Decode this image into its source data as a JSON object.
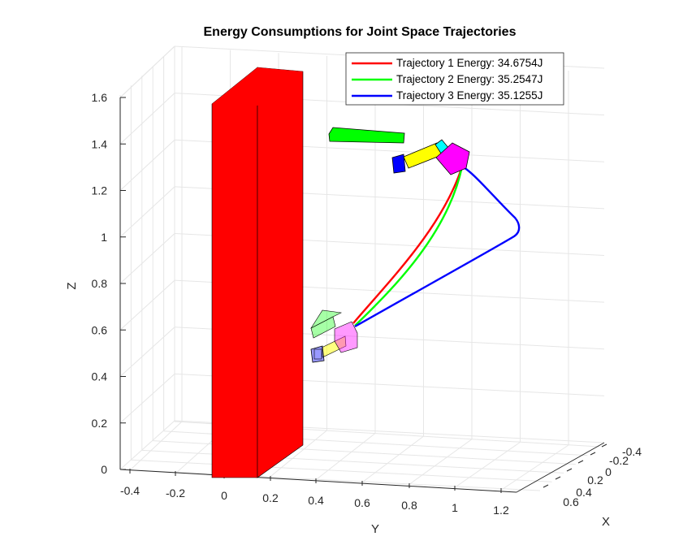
{
  "chart_data": {
    "type": "line",
    "title": "Energy Consumptions for Joint Space Trajectories",
    "xlabel": "X",
    "ylabel": "Y",
    "zlabel": "Z",
    "y_ticks": [
      "-0.4",
      "-0.2",
      "0",
      "0.2",
      "0.4",
      "0.6",
      "0.8",
      "1",
      "1.2"
    ],
    "x_ticks": [
      "-0.4",
      "-0.2",
      "0",
      "0.2",
      "0.4",
      "0.6"
    ],
    "z_ticks": [
      "0",
      "0.2",
      "0.4",
      "0.6",
      "0.8",
      "1",
      "1.2",
      "1.4",
      "1.6"
    ],
    "grid": true,
    "legend_position": "top-right",
    "series": [
      {
        "name": "Trajectory 1 Energy: 34.6754J",
        "color": "#ff0000"
      },
      {
        "name": "Trajectory 2 Energy: 35.2547J",
        "color": "#00ff00"
      },
      {
        "name": "Trajectory 3 Energy: 35.1255J",
        "color": "#0000ff"
      }
    ],
    "objects": [
      {
        "name": "obstacle",
        "color": "#ff0000"
      },
      {
        "name": "robot-start-pose",
        "colors": [
          "#00ff00",
          "#ffff00",
          "#ff00ff",
          "#0000ff"
        ]
      },
      {
        "name": "robot-end-pose",
        "colors": [
          "#00ff00",
          "#ffff00",
          "#00ffff",
          "#ff00ff",
          "#0000ff"
        ]
      }
    ]
  }
}
